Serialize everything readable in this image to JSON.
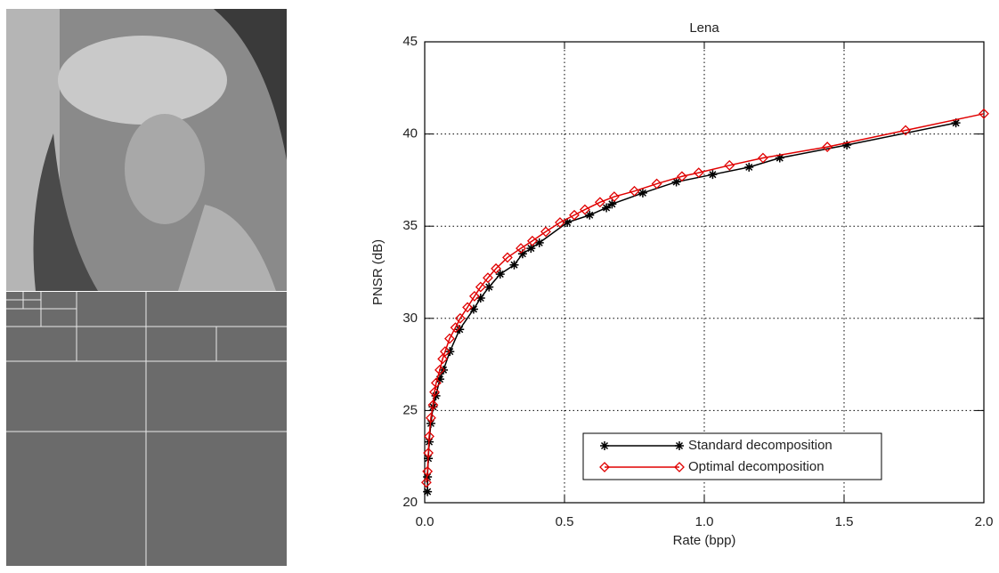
{
  "chart_data": {
    "type": "line",
    "title": "Lena",
    "xlabel": "Rate (bpp)",
    "ylabel": "PNSR (dB)",
    "xlim": [
      0,
      2
    ],
    "ylim": [
      20,
      45
    ],
    "xticks": [
      {
        "value": 0,
        "label": "0.0"
      },
      0.5,
      {
        "value": 1,
        "label": "1.0"
      },
      1.5,
      {
        "value": 2,
        "label": "2.0"
      }
    ],
    "yticks": [
      20,
      25,
      30,
      35,
      40,
      45
    ],
    "grid": true,
    "legend": "lower center",
    "series": [
      {
        "name": "Standard decomposition",
        "color": "#000000",
        "marker": "asterisk",
        "x": [
          0.01,
          0.01,
          0.013,
          0.016,
          0.022,
          0.03,
          0.04,
          0.054,
          0.067,
          0.09,
          0.125,
          0.175,
          0.2,
          0.23,
          0.27,
          0.32,
          0.35,
          0.38,
          0.41,
          0.51,
          0.59,
          0.65,
          0.67,
          0.78,
          0.9,
          1.03,
          1.16,
          1.27,
          1.51,
          1.9
        ],
        "values": [
          20.6,
          21.4,
          22.4,
          23.3,
          24.3,
          25.2,
          25.8,
          26.7,
          27.2,
          28.2,
          29.4,
          30.5,
          31.1,
          31.7,
          32.4,
          32.9,
          33.5,
          33.8,
          34.1,
          35.2,
          35.6,
          36.0,
          36.2,
          36.8,
          37.4,
          37.8,
          38.2,
          38.7,
          39.4,
          40.6
        ]
      },
      {
        "name": "Optimal decomposition",
        "color": "#e00000",
        "marker": "diamond",
        "x": [
          0.006,
          0.01,
          0.013,
          0.016,
          0.022,
          0.03,
          0.035,
          0.041,
          0.054,
          0.064,
          0.073,
          0.089,
          0.11,
          0.127,
          0.153,
          0.178,
          0.2,
          0.226,
          0.255,
          0.296,
          0.344,
          0.385,
          0.433,
          0.484,
          0.535,
          0.573,
          0.627,
          0.678,
          0.75,
          0.83,
          0.92,
          0.98,
          1.09,
          1.21,
          1.44,
          1.72,
          2.0
        ],
        "values": [
          21.1,
          21.7,
          22.7,
          23.6,
          24.6,
          25.3,
          26.0,
          26.5,
          27.2,
          27.8,
          28.2,
          28.9,
          29.5,
          30.0,
          30.6,
          31.2,
          31.7,
          32.2,
          32.7,
          33.3,
          33.8,
          34.2,
          34.7,
          35.2,
          35.6,
          35.9,
          36.3,
          36.6,
          36.9,
          37.3,
          37.7,
          37.9,
          38.3,
          38.7,
          39.3,
          40.2,
          41.1
        ]
      }
    ]
  }
}
